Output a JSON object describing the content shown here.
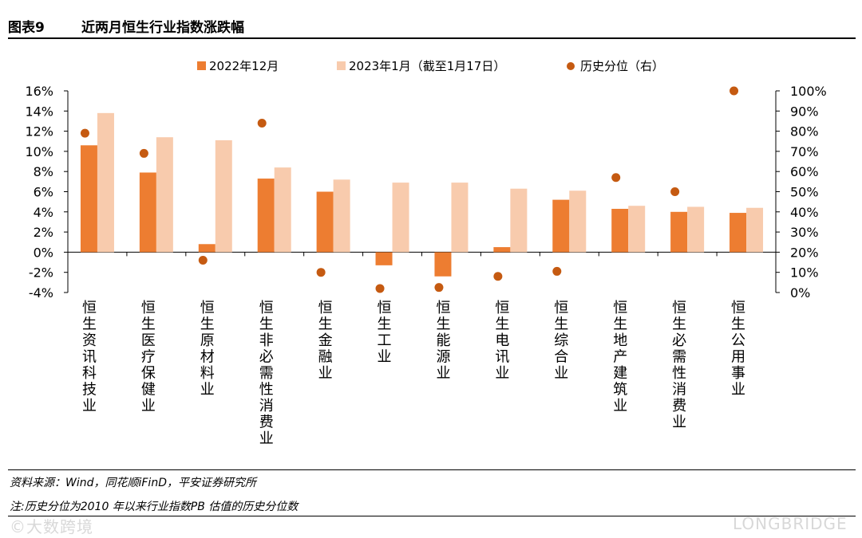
{
  "header": {
    "figure_no": "图表9",
    "title": "近两月恒生行业指数涨跌幅"
  },
  "chart_data": {
    "type": "bar",
    "categories": [
      "恒生资讯科技业",
      "恒生医疗保健业",
      "恒生原材料业",
      "恒生非必需性消费业",
      "恒生金融业",
      "恒生工业",
      "恒生能源业",
      "恒生电讯业",
      "恒生综合业",
      "恒生地产建筑业",
      "恒生必需性消费业",
      "恒生公用事业"
    ],
    "series": [
      {
        "name": "2022年12月",
        "color": "#ed7d31",
        "axis": "left",
        "values": [
          10.6,
          7.9,
          0.8,
          7.3,
          6.0,
          -1.3,
          -2.4,
          0.5,
          5.2,
          4.3,
          4.0,
          3.9
        ]
      },
      {
        "name": "2023年1月（截至1月17日）",
        "color": "#f8cbad",
        "axis": "left",
        "values": [
          13.8,
          11.4,
          11.1,
          8.4,
          7.2,
          6.9,
          6.9,
          6.3,
          6.1,
          4.6,
          4.5,
          4.4
        ]
      },
      {
        "name": "历史分位（右）",
        "color": "#c55a11",
        "axis": "right",
        "type": "scatter",
        "values": [
          79,
          69,
          16,
          84,
          10,
          2,
          2.5,
          8,
          10.5,
          57,
          50,
          100
        ]
      }
    ],
    "ylim": [
      -4,
      16
    ],
    "yticks": [
      "16%",
      "14%",
      "12%",
      "10%",
      "8%",
      "6%",
      "4%",
      "2%",
      "0%",
      "-2%",
      "-4%"
    ],
    "y2lim": [
      0,
      100
    ],
    "y2ticks": [
      "100%",
      "90%",
      "80%",
      "70%",
      "60%",
      "50%",
      "40%",
      "30%",
      "20%",
      "10%",
      "0%"
    ],
    "legend": [
      "2022年12月",
      "2023年1月（截至1月17日）",
      "历史分位（右）"
    ]
  },
  "footer": {
    "source": "资料来源：Wind，同花顺iFinD，平安证券研究所",
    "note": "注:历史分位为2010 年以来行业指数PB 估值的历史分位数"
  },
  "watermarks": {
    "left": "©大数跨境",
    "right": "LONGBRIDGE"
  }
}
